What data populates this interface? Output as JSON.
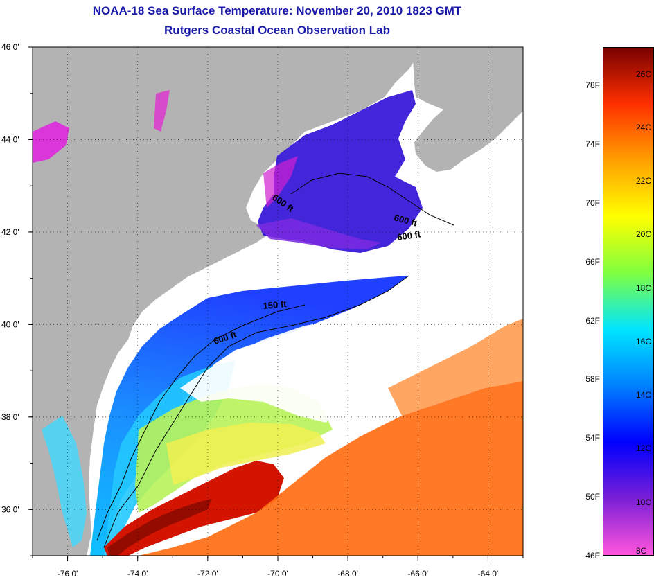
{
  "header": {
    "title": "NOAA-18 Sea Surface Temperature:  November 20, 2010 1823 GMT",
    "subtitle": "Rutgers Coastal Ocean Observation Lab"
  },
  "map": {
    "lon_range": [
      -77,
      -63
    ],
    "lat_range": [
      35,
      46
    ],
    "x_ticks": [
      {
        "lon": -76,
        "label": "-76 0'"
      },
      {
        "lon": -74,
        "label": "-74 0'"
      },
      {
        "lon": -72,
        "label": "-72 0'"
      },
      {
        "lon": -70,
        "label": "-70 0'"
      },
      {
        "lon": -68,
        "label": "-68 0'"
      },
      {
        "lon": -66,
        "label": "-66 0'"
      },
      {
        "lon": -64,
        "label": "-64 0'"
      }
    ],
    "y_ticks": [
      {
        "lat": 46,
        "label": "46 0'"
      },
      {
        "lat": 44,
        "label": "44 0'"
      },
      {
        "lat": 42,
        "label": "42 0'"
      },
      {
        "lat": 40,
        "label": "40 0'"
      },
      {
        "lat": 38,
        "label": "38 0'"
      },
      {
        "lat": 36,
        "label": "36 0'"
      }
    ],
    "contour_labels": [
      "600 ft",
      "600 ft",
      "600 ft",
      "150 ft",
      "600 ft"
    ],
    "land_color": "#b3b3b3",
    "grid": "dotted"
  },
  "colorbar": {
    "f_labels": [
      "78F",
      "74F",
      "70F",
      "66F",
      "62F",
      "58F",
      "54F",
      "50F",
      "46F"
    ],
    "c_labels": [
      "26C",
      "24C",
      "22C",
      "20C",
      "18C",
      "16C",
      "14C",
      "12C",
      "10C",
      "8C"
    ],
    "stops": [
      "#ff55dd",
      "#7a1fd6",
      "#0000ff",
      "#0080ff",
      "#00e5ff",
      "#7fff40",
      "#ffff00",
      "#ffa000",
      "#ff3000",
      "#7a0000"
    ]
  }
}
